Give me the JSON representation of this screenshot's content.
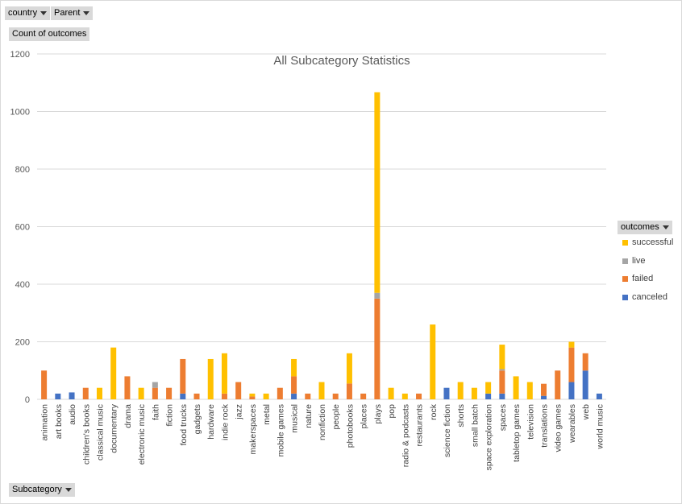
{
  "filters": {
    "country_label": "country",
    "parent_label": "Parent"
  },
  "value_field_label": "Count of outcomes",
  "axis_field_label": "Subcategory",
  "legend": {
    "title": "outcomes",
    "items": [
      {
        "label": "successful",
        "color": "#ffc000"
      },
      {
        "label": "live",
        "color": "#a5a5a5"
      },
      {
        "label": "failed",
        "color": "#ed7d31"
      },
      {
        "label": "canceled",
        "color": "#4472c4"
      }
    ]
  },
  "chart_data": {
    "type": "bar",
    "stacked": true,
    "title": "All Subcategory Statistics",
    "xlabel": "",
    "ylabel": "",
    "ylim": [
      0,
      1200
    ],
    "yticks": [
      0,
      200,
      400,
      600,
      800,
      1000,
      1200
    ],
    "grid": true,
    "legend_position": "right",
    "categories": [
      "animation",
      "art books",
      "audio",
      "children's books",
      "classical music",
      "documentary",
      "drama",
      "electronic music",
      "faith",
      "fiction",
      "food trucks",
      "gadgets",
      "hardware",
      "indie rock",
      "jazz",
      "makerspaces",
      "metal",
      "mobile games",
      "musical",
      "nature",
      "nonfiction",
      "people",
      "photobooks",
      "places",
      "plays",
      "pop",
      "radio & podcasts",
      "restaurants",
      "rock",
      "science fiction",
      "shorts",
      "small batch",
      "space exploration",
      "spaces",
      "tabletop games",
      "television",
      "translations",
      "video games",
      "wearables",
      "web",
      "world music"
    ],
    "series": [
      {
        "name": "canceled",
        "color": "#4472c4",
        "values": [
          0,
          20,
          24,
          0,
          0,
          0,
          0,
          0,
          0,
          0,
          20,
          0,
          0,
          0,
          0,
          0,
          0,
          0,
          20,
          0,
          0,
          0,
          0,
          0,
          0,
          0,
          0,
          0,
          0,
          40,
          0,
          0,
          20,
          20,
          0,
          0,
          12,
          0,
          60,
          100,
          20
        ]
      },
      {
        "name": "failed",
        "color": "#ed7d31",
        "values": [
          100,
          0,
          0,
          40,
          0,
          0,
          80,
          0,
          40,
          40,
          120,
          20,
          0,
          20,
          60,
          10,
          0,
          40,
          60,
          20,
          0,
          20,
          55,
          20,
          350,
          0,
          0,
          20,
          0,
          0,
          0,
          0,
          0,
          80,
          0,
          0,
          42,
          100,
          120,
          60,
          0
        ]
      },
      {
        "name": "live",
        "color": "#a5a5a5",
        "values": [
          0,
          0,
          0,
          0,
          0,
          0,
          0,
          0,
          20,
          0,
          0,
          0,
          0,
          0,
          0,
          0,
          0,
          0,
          0,
          0,
          0,
          0,
          0,
          0,
          20,
          0,
          0,
          0,
          0,
          0,
          0,
          0,
          0,
          5,
          0,
          0,
          0,
          0,
          0,
          0,
          0
        ]
      },
      {
        "name": "successful",
        "color": "#ffc000",
        "values": [
          0,
          0,
          0,
          0,
          40,
          180,
          0,
          40,
          0,
          0,
          0,
          0,
          140,
          140,
          0,
          10,
          20,
          0,
          60,
          0,
          60,
          0,
          105,
          0,
          697,
          40,
          20,
          0,
          260,
          0,
          60,
          40,
          40,
          85,
          80,
          60,
          0,
          0,
          20,
          0,
          0
        ]
      }
    ]
  }
}
